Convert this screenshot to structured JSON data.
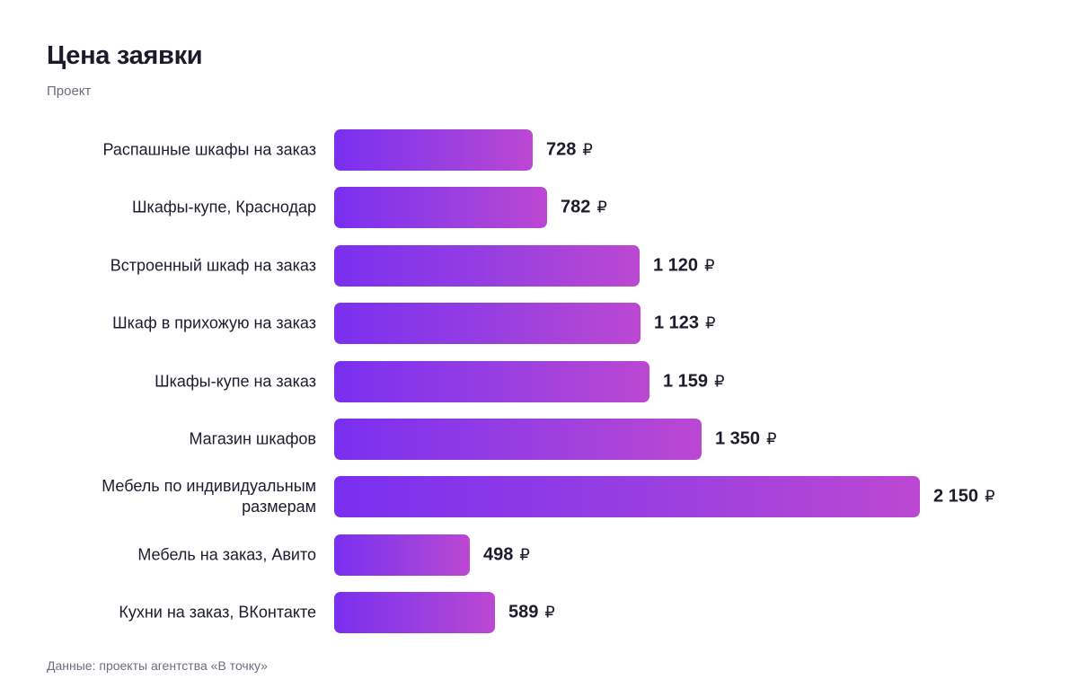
{
  "header": {
    "title": "Цена заявки",
    "subtitle": "Проект"
  },
  "footer": {
    "source": "Данные: проекты агентства «В точку»"
  },
  "colors": {
    "bar_start": "#7a2ff0",
    "bar_end": "#bc48d2"
  },
  "chart_data": {
    "type": "bar",
    "orientation": "horizontal",
    "title": "Цена заявки",
    "subtitle": "Проект",
    "categories": [
      "Распашные шкафы на заказ",
      "Шкафы-купе, Краснодар",
      "Встроенный шкаф на заказ",
      "Шкаф в прихожую на заказ",
      "Шкафы-купе на заказ",
      "Магазин шкафов",
      "Мебель по индивидуальным размерам",
      "Мебель на заказ, Авито",
      "Кухни на заказ, ВКонтакте"
    ],
    "values": [
      728,
      782,
      1120,
      1123,
      1159,
      1350,
      2150,
      498,
      589
    ],
    "value_labels": [
      "728",
      "782",
      "1 120",
      "1 123",
      "1 159",
      "1 350",
      "2 150",
      "498",
      "589"
    ],
    "unit": "₽",
    "xlim": [
      0,
      2150
    ],
    "grid": false,
    "legend": "none",
    "source": "Данные: проекты агентства «В точку»"
  }
}
